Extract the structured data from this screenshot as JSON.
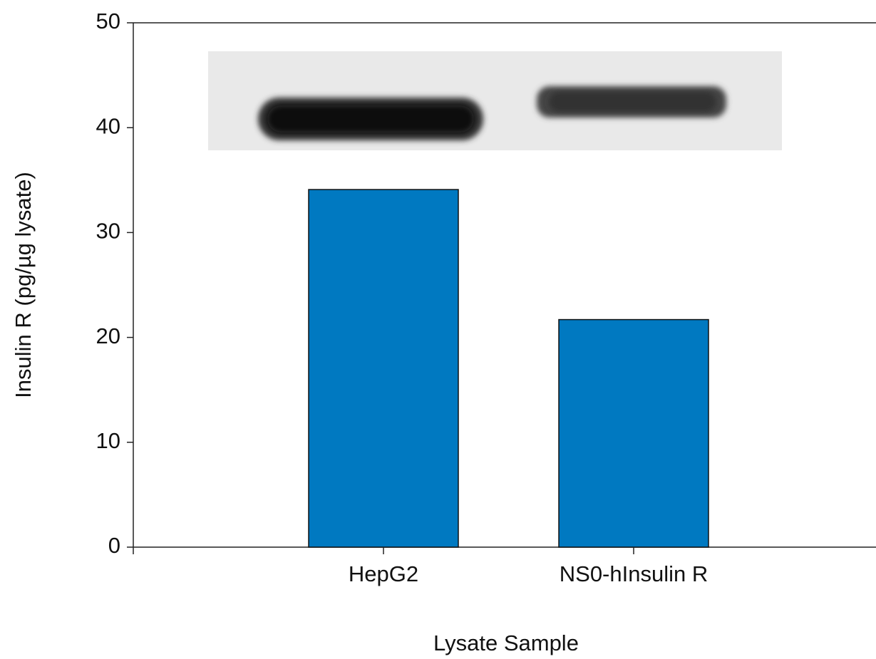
{
  "chart_data": {
    "type": "bar",
    "x_label": "Lysate Sample",
    "y_label": "Insulin R (pg/µg lysate)",
    "categories": [
      "HepG2",
      "NS0-hInsulin R"
    ],
    "values": [
      34.1,
      21.7
    ],
    "color": "#0079c1",
    "ylim": [
      0,
      50
    ],
    "yticks": [
      0,
      10,
      20,
      30,
      40,
      50
    ]
  }
}
